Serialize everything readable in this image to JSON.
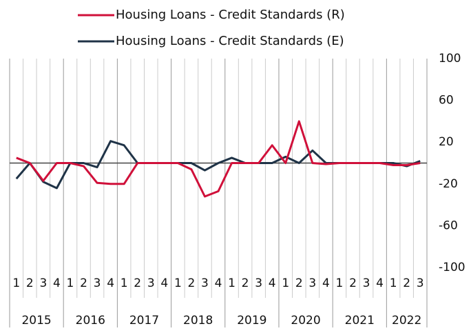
{
  "chart_data": {
    "type": "line",
    "groups": [
      {
        "label": "2015",
        "categories": [
          "1",
          "2",
          "3",
          "4"
        ]
      },
      {
        "label": "2016",
        "categories": [
          "1",
          "2",
          "3",
          "4"
        ]
      },
      {
        "label": "2017",
        "categories": [
          "1",
          "2",
          "3",
          "4"
        ]
      },
      {
        "label": "2018",
        "categories": [
          "1",
          "2",
          "3",
          "4"
        ]
      },
      {
        "label": "2019",
        "categories": [
          "1",
          "2",
          "3",
          "4"
        ]
      },
      {
        "label": "2020",
        "categories": [
          "1",
          "2",
          "3",
          "4"
        ]
      },
      {
        "label": "2021",
        "categories": [
          "1",
          "2",
          "3",
          "4"
        ]
      },
      {
        "label": "2022",
        "categories": [
          "1",
          "2",
          "3"
        ]
      }
    ],
    "series": [
      {
        "name": "Housing Loans - Credit Standards (R)",
        "color": "#d0103a",
        "values": [
          5,
          0,
          -17,
          0,
          0,
          -3,
          -19,
          -20,
          -20,
          0,
          0,
          0,
          0,
          -6,
          -32,
          -27,
          0,
          0,
          0,
          17,
          0,
          40,
          0,
          -1,
          0,
          0,
          0,
          0,
          -2,
          -2,
          0
        ]
      },
      {
        "name": "Housing Loans - Credit Standards (E)",
        "color": "#1f3347",
        "values": [
          -15,
          0,
          -18,
          -24,
          0,
          0,
          -4,
          21,
          17,
          0,
          0,
          0,
          0,
          0,
          -7,
          0,
          5,
          0,
          0,
          0,
          6,
          0,
          12,
          0,
          0,
          0,
          0,
          0,
          0,
          -3,
          2
        ]
      }
    ],
    "ylim": [
      -100,
      100
    ],
    "yticks": [
      -100,
      -60,
      -20,
      20,
      60,
      100
    ],
    "yaxis_side": "right"
  }
}
